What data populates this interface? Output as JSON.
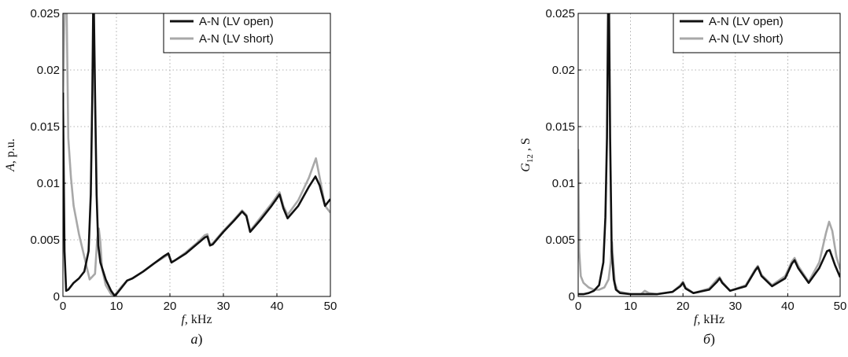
{
  "chart_data": [
    {
      "type": "line",
      "caption_letter": "a",
      "caption_paren": ")",
      "xlabel_symbol": "f",
      "xlabel_unit": ", kHz",
      "ylabel_symbol": "A",
      "ylabel_unit": ", p.u.",
      "xlim": [
        0,
        50
      ],
      "ylim": [
        0,
        0.025
      ],
      "xticks": [
        0,
        10,
        20,
        30,
        40,
        50
      ],
      "yticks": [
        "0",
        "0.005",
        "0.01",
        "0.015",
        "0.02",
        "0.025"
      ],
      "grid": true,
      "legend": "top-right",
      "series": [
        {
          "name": "A-N (LV open)",
          "color": "#111111",
          "x": [
            0,
            0.3,
            0.6,
            1,
            2,
            3,
            4,
            4.8,
            5.2,
            5.5,
            5.65,
            5.8,
            6.0,
            6.3,
            6.6,
            7,
            8,
            9,
            9.6,
            10,
            11,
            12,
            12.5,
            13,
            15,
            17,
            19,
            19.7,
            20.3,
            21,
            23,
            25,
            26.5,
            27,
            27.5,
            28,
            30,
            32,
            33.5,
            34.3,
            35,
            37,
            39,
            40.5,
            41.2,
            42,
            44,
            46,
            47.2,
            48,
            49,
            50
          ],
          "y": [
            0.018,
            0.004,
            0.0005,
            0.0006,
            0.0012,
            0.0016,
            0.0022,
            0.004,
            0.009,
            0.018,
            0.025,
            0.025,
            0.018,
            0.009,
            0.0045,
            0.003,
            0.0015,
            0.0005,
            0.0001,
            0.0002,
            0.0008,
            0.0014,
            0.0015,
            0.0016,
            0.0022,
            0.0029,
            0.0036,
            0.0038,
            0.003,
            0.0032,
            0.0038,
            0.0046,
            0.0052,
            0.0053,
            0.0045,
            0.0046,
            0.0057,
            0.0067,
            0.0075,
            0.0071,
            0.0057,
            0.0068,
            0.008,
            0.009,
            0.0078,
            0.0069,
            0.008,
            0.0097,
            0.0106,
            0.0098,
            0.008,
            0.0086
          ]
        },
        {
          "name": "A-N (LV short)",
          "color": "#a8a8a8",
          "x": [
            0,
            0.3,
            0.7,
            1,
            1.5,
            2,
            3,
            4,
            5,
            6,
            6.4,
            6.7,
            7,
            7.3,
            8,
            9,
            9.6,
            10,
            11,
            12,
            12.5,
            13,
            15,
            17,
            19,
            19.7,
            20.3,
            21,
            23,
            25,
            26.5,
            27,
            27.5,
            28,
            30,
            32,
            33.5,
            34.3,
            35,
            37,
            39,
            40.5,
            41.2,
            42,
            44,
            46,
            47.3,
            48,
            49,
            50
          ],
          "y": [
            0.016,
            0.025,
            0.025,
            0.014,
            0.0105,
            0.008,
            0.0055,
            0.0035,
            0.0015,
            0.002,
            0.005,
            0.006,
            0.0048,
            0.0025,
            0.001,
            0.0002,
            0.0001,
            0.0003,
            0.0009,
            0.0014,
            0.0015,
            0.0016,
            0.0022,
            0.0029,
            0.0035,
            0.0037,
            0.003,
            0.0032,
            0.0039,
            0.0047,
            0.0054,
            0.0055,
            0.0046,
            0.0047,
            0.0058,
            0.0068,
            0.0076,
            0.0072,
            0.0058,
            0.007,
            0.0082,
            0.0092,
            0.008,
            0.0072,
            0.0085,
            0.0105,
            0.0122,
            0.0105,
            0.008,
            0.0074
          ]
        }
      ]
    },
    {
      "type": "line",
      "caption_letter": "б",
      "caption_paren": ")",
      "xlabel_symbol": "f",
      "xlabel_unit": ", kHz",
      "ylabel_symbol": "G",
      "ylabel_sub": "12",
      "ylabel_unit": " , S",
      "xlim": [
        0,
        50
      ],
      "ylim": [
        0,
        0.025
      ],
      "xticks": [
        0,
        10,
        20,
        30,
        40,
        50
      ],
      "yticks": [
        "0",
        "0.005",
        "0.01",
        "0.015",
        "0.02",
        "0.025"
      ],
      "grid": true,
      "legend": "top-right",
      "series": [
        {
          "name": "A-N (LV open)",
          "color": "#111111",
          "x": [
            0,
            0.5,
            1,
            2,
            3,
            4,
            4.8,
            5.2,
            5.5,
            5.7,
            5.9,
            6.1,
            6.4,
            6.8,
            7.2,
            8,
            10,
            12,
            15,
            18,
            19.5,
            20,
            20.5,
            22,
            25,
            26.5,
            27,
            27.5,
            29,
            32,
            33.8,
            34.3,
            35,
            37,
            39.5,
            40.8,
            41.3,
            42,
            44,
            46,
            47.5,
            48,
            49,
            50
          ],
          "y": [
            0.0002,
            0.0002,
            0.0002,
            0.0003,
            0.0005,
            0.001,
            0.003,
            0.007,
            0.014,
            0.025,
            0.025,
            0.014,
            0.004,
            0.0015,
            0.0006,
            0.0003,
            0.0002,
            0.0002,
            0.0002,
            0.0004,
            0.0009,
            0.0012,
            0.0007,
            0.0003,
            0.0006,
            0.0013,
            0.0016,
            0.0012,
            0.0005,
            0.0009,
            0.0023,
            0.0026,
            0.0018,
            0.0009,
            0.0016,
            0.0029,
            0.0032,
            0.0025,
            0.0012,
            0.0025,
            0.004,
            0.0041,
            0.0028,
            0.0017
          ]
        },
        {
          "name": "A-N (LV short)",
          "color": "#a8a8a8",
          "x": [
            0,
            0.2,
            0.5,
            1,
            2,
            3,
            4,
            5,
            5.8,
            6.2,
            6.45,
            6.7,
            7,
            7.5,
            8,
            10,
            12,
            12.7,
            13.5,
            15,
            18,
            19.5,
            20,
            20.5,
            22,
            25,
            26.5,
            27,
            27.5,
            29,
            32,
            33.8,
            34.3,
            35,
            37,
            39.5,
            40.8,
            41.3,
            42,
            44,
            46,
            47.3,
            47.9,
            48.5,
            49.3,
            50
          ],
          "y": [
            0.013,
            0.004,
            0.0018,
            0.0012,
            0.0008,
            0.0006,
            0.0006,
            0.0008,
            0.0015,
            0.003,
            0.0048,
            0.003,
            0.0012,
            0.0005,
            0.0004,
            0.0002,
            0.0002,
            0.0005,
            0.0003,
            0.0002,
            0.0004,
            0.001,
            0.0013,
            0.0008,
            0.0003,
            0.0007,
            0.0015,
            0.0017,
            0.0013,
            0.0005,
            0.001,
            0.0024,
            0.0027,
            0.0019,
            0.001,
            0.0018,
            0.0031,
            0.0034,
            0.0027,
            0.0013,
            0.003,
            0.0056,
            0.0066,
            0.0058,
            0.0035,
            0.0024
          ]
        }
      ]
    }
  ]
}
